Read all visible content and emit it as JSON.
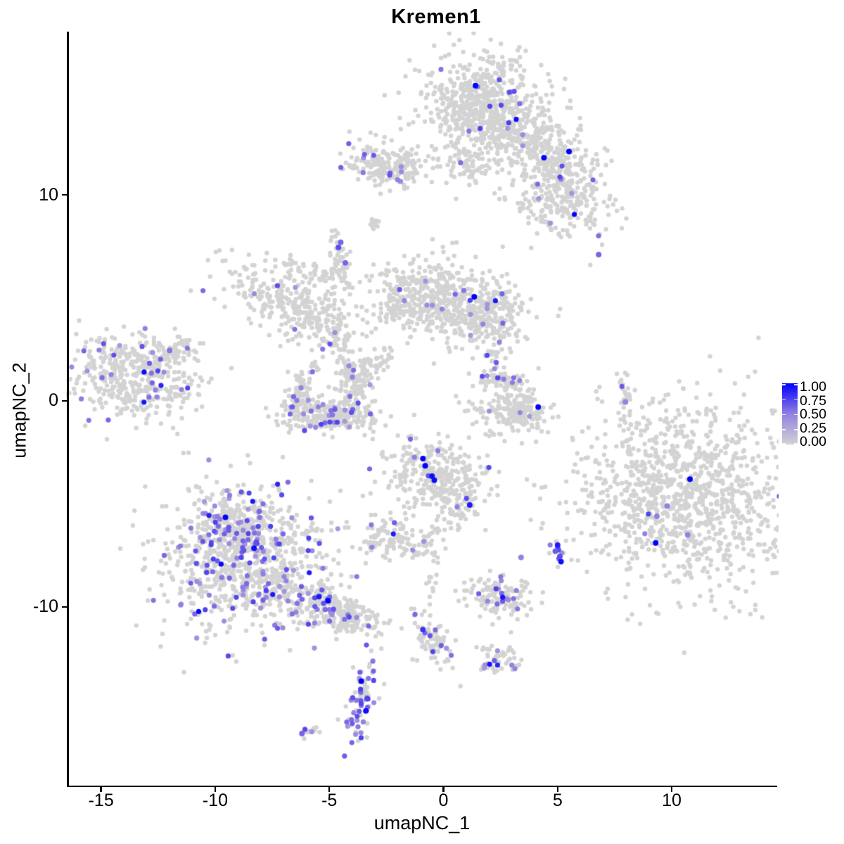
{
  "title": "Kremen1",
  "axes": {
    "x_label": "umapNC_1",
    "y_label": "umapNC_2",
    "x_ticks": [
      {
        "v": -15,
        "label": "-15"
      },
      {
        "v": -10,
        "label": "-10"
      },
      {
        "v": -5,
        "label": "-5"
      },
      {
        "v": 0,
        "label": "0"
      },
      {
        "v": 5,
        "label": "5"
      },
      {
        "v": 10,
        "label": "10"
      }
    ],
    "y_ticks": [
      {
        "v": 10,
        "label": "10"
      },
      {
        "v": 0,
        "label": "0"
      },
      {
        "v": -10,
        "label": "-10"
      }
    ]
  },
  "legend": {
    "labels": [
      {
        "label": "1.00",
        "v": 1.0
      },
      {
        "label": "0.75",
        "v": 0.75
      },
      {
        "label": "0.50",
        "v": 0.5
      },
      {
        "label": "0.25",
        "v": 0.25
      },
      {
        "label": "0.00",
        "v": 0.0
      }
    ]
  },
  "colors": {
    "background": "#FFFFFF",
    "axis": "#000000",
    "low": "#D3D3D3",
    "mid": "#9480DF",
    "high": "#0000FF"
  },
  "chart_data": {
    "type": "scatter",
    "title": "Kremen1",
    "xlabel": "umapNC_1",
    "ylabel": "umapNC_2",
    "xlim": [
      -16.46,
      14.62
    ],
    "ylim": [
      -18.69,
      17.92
    ],
    "legend_scale": {
      "min": 0.0,
      "max": 1.0,
      "breaks": [
        1.0,
        0.75,
        0.5,
        0.25,
        0.0
      ],
      "low_color": "#D3D3D3",
      "high_color": "#0000FF",
      "position": "right"
    },
    "grid": false,
    "seed": 7,
    "point_radius_gray": 3.2,
    "point_radius_expressed": 3.6,
    "point_radius_highlight": 4.0,
    "clusters": [
      {
        "name": "top-main",
        "cx": 1.85,
        "cy": 14.3,
        "sx": 1.35,
        "sy": 1.25,
        "rot": 0,
        "n": 650,
        "f": 0.012
      },
      {
        "name": "top-arm",
        "cx": 4.3,
        "cy": 12.4,
        "sx": 1.5,
        "sy": 0.6,
        "rot": -28,
        "n": 270,
        "f": 0.012
      },
      {
        "name": "top-below",
        "cx": 1.2,
        "cy": 11.4,
        "sx": 0.8,
        "sy": 0.55,
        "rot": 0,
        "n": 70,
        "f": 0.02
      },
      {
        "name": "upper-left-small",
        "cx": -2.5,
        "cy": 11.5,
        "sx": 0.85,
        "sy": 0.5,
        "rot": -8,
        "n": 210,
        "f": 0.03
      },
      {
        "name": "right-bridge",
        "cx": 4.7,
        "cy": 10.9,
        "sx": 0.45,
        "sy": 0.45,
        "rot": 0,
        "n": 60,
        "f": 0.02
      },
      {
        "name": "right-mid",
        "cx": 5.2,
        "cy": 9.6,
        "sx": 1.15,
        "sy": 0.85,
        "rot": -15,
        "n": 230,
        "f": 0.04
      },
      {
        "name": "dash-e",
        "cx": -3.0,
        "cy": 8.6,
        "sx": 0.18,
        "sy": 0.12,
        "rot": -30,
        "n": 10,
        "f": 0
      },
      {
        "name": "streak-f",
        "cx": -4.55,
        "cy": 7.0,
        "sx": 0.22,
        "sy": 0.75,
        "rot": 8,
        "n": 45,
        "f": 0.04
      },
      {
        "name": "wing",
        "cx": -6.6,
        "cy": 4.7,
        "sx": 1.6,
        "sy": 0.75,
        "rot": -28,
        "n": 280,
        "f": 0.012
      },
      {
        "name": "wing-top",
        "cx": -5.9,
        "cy": 6.3,
        "sx": 1.0,
        "sy": 0.28,
        "rot": -18,
        "n": 55,
        "f": 0.01
      },
      {
        "name": "center-left",
        "cx": -0.9,
        "cy": 5.2,
        "sx": 1.05,
        "sy": 0.95,
        "rot": 0,
        "n": 330,
        "f": 0.03
      },
      {
        "name": "center-right",
        "cx": 1.6,
        "cy": 4.3,
        "sx": 1.0,
        "sy": 0.85,
        "rot": -15,
        "n": 330,
        "f": 0.035
      },
      {
        "name": "center-left-pair",
        "cx": -2.2,
        "cy": 4.5,
        "sx": 0.3,
        "sy": 0.3,
        "rot": 0,
        "n": 25,
        "f": 0.1
      },
      {
        "name": "streak-i",
        "cx": -4.5,
        "cy": 2.6,
        "sx": 0.35,
        "sy": 1.5,
        "rot": 8,
        "n": 100,
        "f": 0.03
      },
      {
        "name": "cup-bridge",
        "cx": -2.9,
        "cy": 1.9,
        "sx": 0.55,
        "sy": 0.3,
        "rot": 40,
        "n": 40,
        "f": 0
      },
      {
        "name": "left-main",
        "cx": -13.4,
        "cy": 1.2,
        "sx": 1.5,
        "sy": 1.05,
        "rot": -10,
        "n": 420,
        "f": 0.07
      },
      {
        "name": "left-tail",
        "cx": -11.9,
        "cy": 2.3,
        "sx": 0.55,
        "sy": 0.3,
        "rot": 40,
        "n": 55,
        "f": 0.02
      },
      {
        "name": "cup-left",
        "cx": -6.35,
        "cy": 0.4,
        "sx": 0.3,
        "sy": 0.75,
        "rot": -15,
        "n": 90,
        "f": 0.06
      },
      {
        "name": "cup-bottom",
        "cx": -5.0,
        "cy": -0.65,
        "sx": 1.05,
        "sy": 0.4,
        "rot": -5,
        "n": 230,
        "f": 0.08
      },
      {
        "name": "cup-right",
        "cx": -3.75,
        "cy": 0.6,
        "sx": 0.3,
        "sy": 0.75,
        "rot": 12,
        "n": 90,
        "f": 0.04
      },
      {
        "name": "mid-right-top",
        "cx": 2.7,
        "cy": 0.95,
        "sx": 0.55,
        "sy": 0.3,
        "rot": -10,
        "n": 65,
        "f": 0.12
      },
      {
        "name": "mid-right-main",
        "cx": 3.2,
        "cy": -0.5,
        "sx": 0.8,
        "sy": 0.6,
        "rot": 0,
        "n": 190,
        "f": 0.015
      },
      {
        "name": "dash-n",
        "cx": 7.97,
        "cy": 0.05,
        "sx": 0.14,
        "sy": 0.8,
        "rot": 0,
        "n": 28,
        "f": 0.05
      },
      {
        "name": "right-big",
        "cx": 10.6,
        "cy": -4.6,
        "sx": 2.45,
        "sy": 2.3,
        "rot": -12,
        "n": 1150,
        "f": 0.003
      },
      {
        "name": "center-small",
        "cx": -0.45,
        "cy": -3.6,
        "sx": 1.05,
        "sy": 0.95,
        "rot": 0,
        "n": 300,
        "f": 0.05
      },
      {
        "name": "center-tail",
        "cx": 0.85,
        "cy": -5.0,
        "sx": 0.4,
        "sy": 0.7,
        "rot": -30,
        "n": 60,
        "f": 0.03
      },
      {
        "name": "small-r",
        "cx": -2.3,
        "cy": -6.8,
        "sx": 0.7,
        "sy": 0.5,
        "rot": -10,
        "n": 95,
        "f": 0.1
      },
      {
        "name": "dash-s",
        "cx": -1.0,
        "cy": -7.1,
        "sx": 0.28,
        "sy": 0.22,
        "rot": 0,
        "n": 22,
        "f": 0
      },
      {
        "name": "bottom-left-main",
        "cx": -8.7,
        "cy": -7.6,
        "sx": 1.9,
        "sy": 1.7,
        "rot": -8,
        "n": 850,
        "f": 0.13
      },
      {
        "name": "bottom-left-knob",
        "cx": -9.2,
        "cy": -5.9,
        "sx": 0.8,
        "sy": 0.65,
        "rot": 0,
        "n": 160,
        "f": 0.2
      },
      {
        "name": "bottom-left-arm",
        "cx": -5.3,
        "cy": -9.9,
        "sx": 1.4,
        "sy": 0.5,
        "rot": -22,
        "n": 240,
        "f": 0.1
      },
      {
        "name": "arm-tip",
        "cx": -4.0,
        "cy": -10.6,
        "sx": 0.5,
        "sy": 0.3,
        "rot": -20,
        "n": 50,
        "f": 0.12
      },
      {
        "name": "bottom-mid",
        "cx": 2.45,
        "cy": -9.5,
        "sx": 0.85,
        "sy": 0.45,
        "rot": -8,
        "n": 130,
        "f": 0.09
      },
      {
        "name": "purple-pair",
        "cx": 5.05,
        "cy": -7.4,
        "sx": 0.3,
        "sy": 0.5,
        "rot": 0,
        "n": 10,
        "f": 0.45
      },
      {
        "name": "streak-w",
        "cx": -0.5,
        "cy": -11.5,
        "sx": 0.35,
        "sy": 0.8,
        "rot": 25,
        "n": 70,
        "f": 0.1
      },
      {
        "name": "small-x",
        "cx": 2.35,
        "cy": -12.6,
        "sx": 0.5,
        "sy": 0.4,
        "rot": 0,
        "n": 55,
        "f": 0.08
      },
      {
        "name": "drip-y",
        "cx": -3.55,
        "cy": -14.6,
        "sx": 0.3,
        "sy": 1.0,
        "rot": -10,
        "n": 80,
        "f": 0.35
      },
      {
        "name": "dash-z",
        "cx": -5.9,
        "cy": -16.05,
        "sx": 0.3,
        "sy": 0.12,
        "rot": 0,
        "n": 12,
        "f": 0.08
      },
      {
        "name": "bridge-hm",
        "cx": 2.3,
        "cy": 2.5,
        "sx": 0.3,
        "sy": 1.2,
        "rot": 0,
        "n": 30,
        "f": 0.03
      },
      {
        "name": "bridge-pw",
        "cx": -0.5,
        "cy": -8.0,
        "sx": 0.25,
        "sy": 1.3,
        "rot": 0,
        "n": 25,
        "f": 0
      }
    ],
    "highlight_points": [
      [
        1.4,
        15.3,
        1
      ],
      [
        4.4,
        11.8,
        1
      ],
      [
        5.5,
        12.1,
        1
      ],
      [
        6.8,
        7.1,
        0.6
      ],
      [
        1.35,
        5.05,
        1
      ],
      [
        -4.6,
        7.45,
        0.7
      ],
      [
        -4.5,
        7.7,
        0.6
      ],
      [
        -4.3,
        6.7,
        0.6
      ],
      [
        10.8,
        -3.8,
        1
      ],
      [
        9.3,
        -6.9,
        1
      ],
      [
        9.8,
        -5.1,
        0.5
      ],
      [
        9.35,
        -5.6,
        0.5
      ],
      [
        10.7,
        -6.5,
        0.5
      ],
      [
        -0.9,
        -2.8,
        1
      ],
      [
        -0.8,
        -3.15,
        1
      ],
      [
        -0.5,
        -3.65,
        0.95
      ],
      [
        -0.4,
        -3.85,
        0.95
      ],
      [
        1.15,
        -5.05,
        0.9
      ],
      [
        4.15,
        -0.3,
        1
      ],
      [
        -8.3,
        -7.15,
        0.95
      ],
      [
        -9.55,
        -5.65,
        1
      ],
      [
        -5.05,
        -9.7,
        1
      ],
      [
        -5.45,
        -9.5,
        0.9
      ],
      [
        5.0,
        -7.0,
        0.9
      ],
      [
        5.15,
        -7.8,
        0.95
      ],
      [
        5.1,
        -7.55,
        0.7
      ],
      [
        4.9,
        -7.3,
        0.65
      ],
      [
        -3.6,
        -13.6,
        1
      ],
      [
        -3.4,
        -15.05,
        0.95
      ],
      [
        -0.9,
        -11.1,
        0.8
      ],
      [
        7.97,
        -0.05,
        0.5
      ],
      [
        -6.2,
        -16.15,
        0.6
      ],
      [
        -12.0,
        2.45,
        0.55
      ],
      [
        3.4,
        -7.6,
        0.5
      ]
    ]
  }
}
